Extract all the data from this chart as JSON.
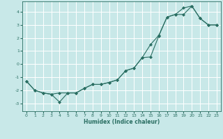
{
  "xlabel": "Humidex (Indice chaleur)",
  "bg_color": "#c8e8e8",
  "grid_color": "#ffffff",
  "line_color": "#2a6e62",
  "xlim": [
    -0.5,
    23.5
  ],
  "ylim": [
    -3.6,
    4.8
  ],
  "yticks": [
    -3,
    -2,
    -1,
    0,
    1,
    2,
    3,
    4
  ],
  "xticks": [
    0,
    1,
    2,
    3,
    4,
    5,
    6,
    7,
    8,
    9,
    10,
    11,
    12,
    13,
    14,
    15,
    16,
    17,
    18,
    19,
    20,
    21,
    22,
    23
  ],
  "line1_x": [
    0,
    1,
    2,
    3,
    4,
    5,
    6,
    7,
    8,
    9,
    10,
    11,
    12,
    13,
    14,
    15,
    16,
    17,
    18,
    19,
    20,
    21,
    22,
    23
  ],
  "line1_y": [
    -1.3,
    -2.0,
    -2.2,
    -2.3,
    -2.9,
    -2.2,
    -2.2,
    -1.85,
    -1.55,
    -1.55,
    -1.4,
    -1.2,
    -0.5,
    -0.3,
    0.5,
    0.55,
    2.15,
    3.6,
    3.8,
    4.3,
    4.45,
    3.5,
    3.0,
    3.0
  ],
  "line2_x": [
    0,
    1,
    2,
    3,
    4,
    5,
    6,
    7,
    8,
    9,
    10,
    11,
    12,
    13,
    14,
    15,
    16,
    17,
    18,
    19,
    20,
    21,
    22,
    23
  ],
  "line2_y": [
    -1.3,
    -2.0,
    -2.2,
    -2.3,
    -2.2,
    -2.2,
    -2.2,
    -1.85,
    -1.55,
    -1.55,
    -1.4,
    -1.2,
    -0.5,
    -0.3,
    0.5,
    1.5,
    2.2,
    3.6,
    3.8,
    3.8,
    4.45,
    3.5,
    3.0,
    3.0
  ]
}
